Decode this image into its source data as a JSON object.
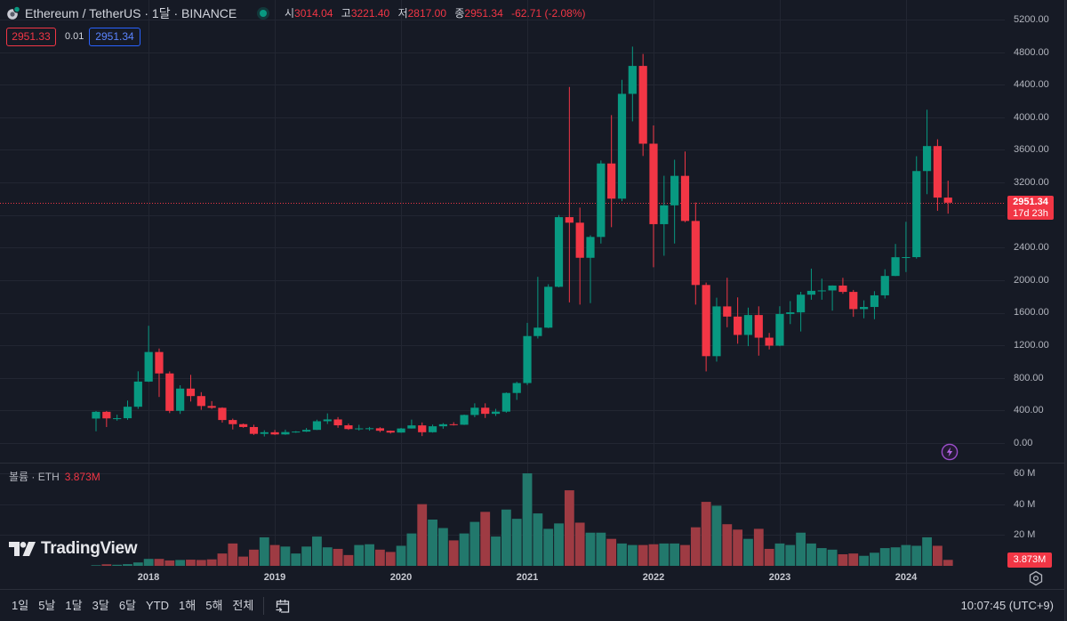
{
  "header": {
    "symbol": "Ethereum / TetherUS · 1달 · BINANCE",
    "ohlc": [
      {
        "label": "시",
        "value": "3014.04"
      },
      {
        "label": "고",
        "value": "3221.40"
      },
      {
        "label": "저",
        "value": "2817.00"
      },
      {
        "label": "종",
        "value": "2951.34"
      }
    ],
    "change": "-62.71 (-2.08%)",
    "bid": "2951.33",
    "spread": "0.01",
    "ask": "2951.34"
  },
  "price_axis": {
    "labels": [
      "5200.00",
      "4800.00",
      "4400.00",
      "4000.00",
      "3600.00",
      "3200.00",
      "2400.00",
      "2000.00",
      "1600.00",
      "1200.00",
      "800.00",
      "400.00",
      "0.00"
    ]
  },
  "current_price": {
    "value": "2951.34",
    "countdown": "17d 23h"
  },
  "volume": {
    "label": "볼륨 · ETH",
    "value": "3.873M",
    "axis": [
      "60 M",
      "40 M",
      "20 M"
    ],
    "badge": "3.873M"
  },
  "time_axis": {
    "labels": [
      "2018",
      "2019",
      "2020",
      "2021",
      "2022",
      "2023",
      "2024"
    ]
  },
  "logo": {
    "text": "TradingView"
  },
  "toolbar": {
    "ranges": [
      "1일",
      "5날",
      "1달",
      "3달",
      "6달",
      "YTD",
      "1해",
      "5해",
      "전체"
    ],
    "clock": "10:07:45 (UTC+9)"
  },
  "icons": {
    "symbol": "ethereum-icon",
    "status": "market-open-dot",
    "alert": "lightning-icon",
    "settings": "gear-icon",
    "goto_date": "calendar-arrow-icon"
  },
  "colors": {
    "up": "#089981",
    "down": "#f23645",
    "volume_up": "#22786c",
    "volume_down": "#9e3b43",
    "price_line": "#f23645",
    "ask_blue": "#2962ff",
    "alert_purple": "#9c4dcc",
    "background": "#161a25"
  },
  "chart_data": {
    "type": "candlestick",
    "title": "Ethereum / TetherUS · 1달 · BINANCE",
    "xlabel": "",
    "ylabel": "",
    "categories": [
      "2017-08",
      "2017-09",
      "2017-10",
      "2017-11",
      "2017-12",
      "2018-01",
      "2018-02",
      "2018-03",
      "2018-04",
      "2018-05",
      "2018-06",
      "2018-07",
      "2018-08",
      "2018-09",
      "2018-10",
      "2018-11",
      "2018-12",
      "2019-01",
      "2019-02",
      "2019-03",
      "2019-04",
      "2019-05",
      "2019-06",
      "2019-07",
      "2019-08",
      "2019-09",
      "2019-10",
      "2019-11",
      "2019-12",
      "2020-01",
      "2020-02",
      "2020-03",
      "2020-04",
      "2020-05",
      "2020-06",
      "2020-07",
      "2020-08",
      "2020-09",
      "2020-10",
      "2020-11",
      "2020-12",
      "2021-01",
      "2021-02",
      "2021-03",
      "2021-04",
      "2021-05",
      "2021-06",
      "2021-07",
      "2021-08",
      "2021-09",
      "2021-10",
      "2021-11",
      "2021-12",
      "2022-01",
      "2022-02",
      "2022-03",
      "2022-04",
      "2022-05",
      "2022-06",
      "2022-07",
      "2022-08",
      "2022-09",
      "2022-10",
      "2022-11",
      "2022-12",
      "2023-01",
      "2023-02",
      "2023-03",
      "2023-04",
      "2023-05",
      "2023-06",
      "2023-07",
      "2023-08",
      "2023-09",
      "2023-10",
      "2023-11",
      "2023-12",
      "2024-01",
      "2024-02",
      "2024-03",
      "2024-04",
      "2024-05"
    ],
    "series": [
      {
        "name": "ETHUSDT",
        "kind": "ohlc",
        "values": [
          [
            301,
            393,
            145,
            384
          ],
          [
            384,
            394,
            197,
            303
          ],
          [
            303,
            349,
            275,
            305
          ],
          [
            305,
            522,
            285,
            446
          ],
          [
            446,
            881,
            420,
            755
          ],
          [
            755,
            1440,
            750,
            1118
          ],
          [
            1118,
            1161,
            566,
            855
          ],
          [
            855,
            880,
            368,
            395
          ],
          [
            396,
            710,
            358,
            669
          ],
          [
            669,
            838,
            510,
            577
          ],
          [
            577,
            625,
            408,
            455
          ],
          [
            455,
            515,
            420,
            433
          ],
          [
            433,
            439,
            251,
            283
          ],
          [
            283,
            300,
            167,
            232
          ],
          [
            232,
            240,
            188,
            197
          ],
          [
            197,
            225,
            100,
            113
          ],
          [
            113,
            157,
            81,
            133
          ],
          [
            133,
            161,
            100,
            106
          ],
          [
            106,
            165,
            101,
            135
          ],
          [
            135,
            147,
            126,
            141
          ],
          [
            141,
            185,
            136,
            162
          ],
          [
            162,
            287,
            160,
            268
          ],
          [
            268,
            364,
            234,
            290
          ],
          [
            290,
            319,
            188,
            218
          ],
          [
            218,
            239,
            162,
            172
          ],
          [
            172,
            224,
            154,
            180
          ],
          [
            180,
            198,
            152,
            182
          ],
          [
            182,
            195,
            134,
            151
          ],
          [
            151,
            154,
            117,
            129
          ],
          [
            129,
            186,
            126,
            179
          ],
          [
            179,
            288,
            178,
            217
          ],
          [
            217,
            253,
            86,
            133
          ],
          [
            133,
            227,
            128,
            206
          ],
          [
            206,
            245,
            176,
            231
          ],
          [
            231,
            256,
            215,
            225
          ],
          [
            225,
            350,
            222,
            345
          ],
          [
            345,
            488,
            318,
            434
          ],
          [
            434,
            488,
            308,
            359
          ],
          [
            359,
            420,
            333,
            386
          ],
          [
            386,
            622,
            373,
            615
          ],
          [
            615,
            753,
            530,
            737
          ],
          [
            737,
            1476,
            714,
            1314
          ],
          [
            1314,
            2041,
            1284,
            1417
          ],
          [
            1417,
            1950,
            1412,
            1919
          ],
          [
            1919,
            2800,
            1912,
            2774
          ],
          [
            2774,
            4372,
            1728,
            2706
          ],
          [
            2706,
            2891,
            1700,
            2275
          ],
          [
            2275,
            2551,
            1718,
            2531
          ],
          [
            2531,
            3470,
            2450,
            3433
          ],
          [
            3433,
            4027,
            2651,
            3001
          ],
          [
            3001,
            4460,
            2970,
            4288
          ],
          [
            4288,
            4868,
            3950,
            4631
          ],
          [
            4631,
            4778,
            3525,
            3676
          ],
          [
            3676,
            3900,
            2159,
            2688
          ],
          [
            2688,
            3282,
            2300,
            2919
          ],
          [
            2919,
            3479,
            2450,
            3281
          ],
          [
            3281,
            3580,
            2712,
            2727
          ],
          [
            2727,
            2954,
            1700,
            1941
          ],
          [
            1941,
            1971,
            880,
            1067
          ],
          [
            1067,
            1785,
            1000,
            1678
          ],
          [
            1678,
            2030,
            1422,
            1553
          ],
          [
            1553,
            1789,
            1220,
            1328
          ],
          [
            1328,
            1663,
            1190,
            1572
          ],
          [
            1572,
            1679,
            1073,
            1294
          ],
          [
            1294,
            1352,
            1150,
            1196
          ],
          [
            1196,
            1680,
            1190,
            1585
          ],
          [
            1585,
            1743,
            1461,
            1605
          ],
          [
            1605,
            1857,
            1370,
            1822
          ],
          [
            1822,
            2142,
            1760,
            1869
          ],
          [
            1869,
            2019,
            1760,
            1874
          ],
          [
            1874,
            1936,
            1626,
            1934
          ],
          [
            1934,
            2029,
            1833,
            1856
          ],
          [
            1856,
            1880,
            1550,
            1645
          ],
          [
            1645,
            1752,
            1532,
            1671
          ],
          [
            1671,
            1865,
            1521,
            1814
          ],
          [
            1814,
            2134,
            1775,
            2052
          ],
          [
            2052,
            2445,
            2050,
            2282
          ],
          [
            2282,
            2717,
            2100,
            2283
          ],
          [
            2283,
            3522,
            2265,
            3340
          ],
          [
            3340,
            4093,
            3056,
            3647
          ],
          [
            3647,
            3730,
            2852,
            3014
          ],
          [
            3014.04,
            3221.4,
            2817.0,
            2951.34
          ]
        ]
      },
      {
        "name": "볼륨 · ETH",
        "kind": "volume",
        "unit": "M",
        "values": [
          0.4,
          1.0,
          0.7,
          1.1,
          2.2,
          4.5,
          4.5,
          3.5,
          3.8,
          4.0,
          3.8,
          4.2,
          8.0,
          14.5,
          6.0,
          10.5,
          18.5,
          13.5,
          12.5,
          8.0,
          12.5,
          19.0,
          12.0,
          11.0,
          7.0,
          13.5,
          14.0,
          10.5,
          9.0,
          13.0,
          21.0,
          40.0,
          30.0,
          24.5,
          16.5,
          21.0,
          28.5,
          35.0,
          19.0,
          36.5,
          30.5,
          60.0,
          34.0,
          24.0,
          27.5,
          49.0,
          28.0,
          21.5,
          21.5,
          17.5,
          14.5,
          13.5,
          13.5,
          14.0,
          14.5,
          14.5,
          13.5,
          25.0,
          41.5,
          39.0,
          27.0,
          23.5,
          17.5,
          24.0,
          11.0,
          14.5,
          13.5,
          21.5,
          14.5,
          11.5,
          10.5,
          7.5,
          8.0,
          6.5,
          8.5,
          11.5,
          12.0,
          13.5,
          13.0,
          18.5,
          13.0,
          3.873
        ]
      }
    ],
    "ylim": [
      0,
      5200
    ],
    "yticks": [
      0,
      400,
      800,
      1200,
      1600,
      2000,
      2400,
      2800,
      3200,
      3600,
      4000,
      4400,
      4800,
      5200
    ],
    "volume_ylim": [
      0,
      60
    ],
    "volume_yticks": [
      20,
      40,
      60
    ],
    "xticks": [
      {
        "label": "2018",
        "index": 5
      },
      {
        "label": "2019",
        "index": 17
      },
      {
        "label": "2020",
        "index": 29
      },
      {
        "label": "2021",
        "index": 41
      },
      {
        "label": "2022",
        "index": 53
      },
      {
        "label": "2023",
        "index": 65
      },
      {
        "label": "2024",
        "index": 77
      }
    ],
    "current_price": 2951.34,
    "grid": true,
    "legend_position": "top-left"
  }
}
